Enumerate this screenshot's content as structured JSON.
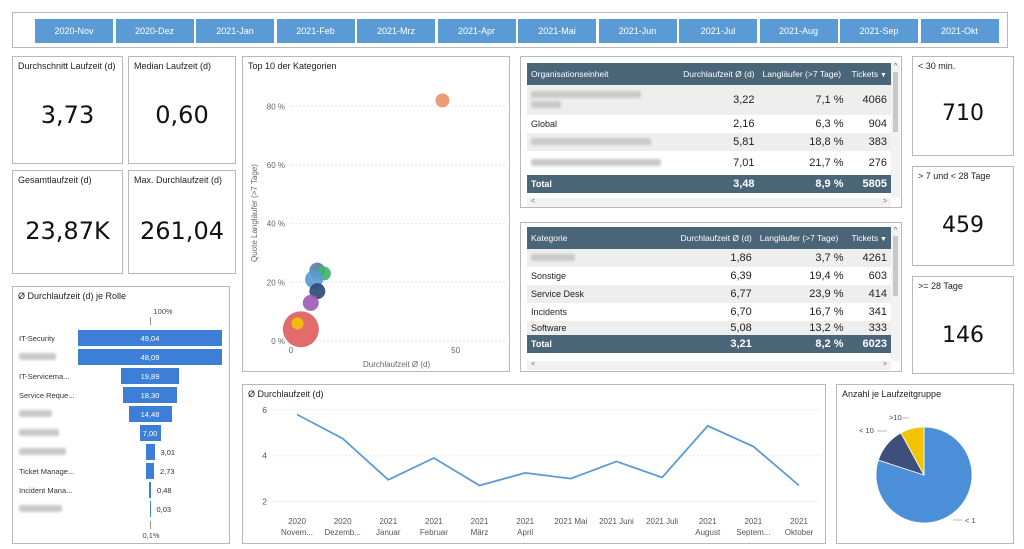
{
  "months": [
    "2020-Nov",
    "2020-Dez",
    "2021-Jan",
    "2021-Feb",
    "2021-Mrz",
    "2021-Apr",
    "2021-Mai",
    "2021-Jun",
    "2021-Jul",
    "2021-Aug",
    "2021-Sep",
    "2021-Okt"
  ],
  "kpi": {
    "avg_label": "Durchschnitt Laufzeit (d)",
    "avg_value": "3,73",
    "median_label": "Median Laufzeit (d)",
    "median_value": "0,60",
    "total_label": "Gesamtlaufzeit (d)",
    "total_value": "23,87K",
    "max_label": "Max. Durchlaufzeit (d)",
    "max_value": "261,04"
  },
  "groups": {
    "g1_label": "< 30 min.",
    "g1_value": "710",
    "g2_label": ">  7 und  < 28 Tage",
    "g2_value": "459",
    "g3_label": ">= 28 Tage",
    "g3_value": "146"
  },
  "scatter": {
    "title": "Top 10 der Kategorien",
    "ylabel": "Quote Langläufer (>7 Tage)",
    "xlabel": "Durchlaufzeit Ø (d)",
    "yticks": [
      "80 %",
      "60 %",
      "40 %",
      "20 %",
      "0 %"
    ],
    "xticks": [
      "0",
      "50"
    ]
  },
  "org_table": {
    "headers": [
      "Organisationseinheit",
      "Durchlaufzeit Ø (d)",
      "Langläufer (>7 Tage)",
      "Tickets"
    ],
    "rows": [
      {
        "name": "",
        "d": "3,22",
        "l": "7,1 %",
        "t": "4066"
      },
      {
        "name": "Global",
        "d": "2,16",
        "l": "6,3 %",
        "t": "904"
      },
      {
        "name": "",
        "d": "5,81",
        "l": "18,8 %",
        "t": "383"
      },
      {
        "name": "",
        "d": "7,01",
        "l": "21,7 %",
        "t": "276"
      }
    ],
    "total": {
      "name": "Total",
      "d": "3,48",
      "l": "8,9 %",
      "t": "5805"
    }
  },
  "cat_table": {
    "headers": [
      "Kategorie",
      "Durchlaufzeit Ø (d)",
      "Langläufer (>7 Tage)",
      "Tickets"
    ],
    "rows": [
      {
        "name": "",
        "d": "1,86",
        "l": "3,7 %",
        "t": "4261"
      },
      {
        "name": "Sonstige",
        "d": "6,39",
        "l": "19,4 %",
        "t": "603"
      },
      {
        "name": "Service Desk",
        "d": "6,77",
        "l": "23,9 %",
        "t": "414"
      },
      {
        "name": "Incidents",
        "d": "6,70",
        "l": "16,7 %",
        "t": "341"
      },
      {
        "name": "Software",
        "d": "5,08",
        "l": "13,2 %",
        "t": "333"
      }
    ],
    "total": {
      "name": "Total",
      "d": "3,21",
      "l": "8,2 %",
      "t": "6023"
    }
  },
  "funnel": {
    "title": "Ø Durchlaufzeit (d) je Rolle",
    "top_label": "100%",
    "bottom_label": "0,1%",
    "items": [
      {
        "label": "IT-Security",
        "value": "49,04"
      },
      {
        "label": "",
        "value": "48,09"
      },
      {
        "label": "IT-Servicema...",
        "value": "19,89"
      },
      {
        "label": "Service Reque...",
        "value": "18,30"
      },
      {
        "label": "",
        "value": "14,48"
      },
      {
        "label": "",
        "value": "7,00"
      },
      {
        "label": "",
        "value": "3,01"
      },
      {
        "label": "Ticket Manage...",
        "value": "2,73"
      },
      {
        "label": "Incident Mana...",
        "value": "0,48"
      },
      {
        "label": "",
        "value": "0,03"
      }
    ]
  },
  "pie": {
    "title": "Anzahl je Laufzeitgruppe",
    "lbl_gt10": ">10",
    "lbl_lt10": "< 10",
    "lbl_lt1": "< 1"
  },
  "chart_data": [
    {
      "type": "line",
      "title": "Ø Durchlaufzeit (d)",
      "x": [
        "2020 Novem...",
        "2020 Dezemb...",
        "2021 Januar",
        "2021 Februar",
        "2021 März",
        "2021 April",
        "2021 Mai",
        "2021 Juni",
        "2021 Juli",
        "2021 August",
        "2021 Septem...",
        "2021 Oktober"
      ],
      "x_top": [
        "2020",
        "2020",
        "2021",
        "2021",
        "2021",
        "2021",
        "2021 Mai",
        "2021 Juni",
        "2021 Juli",
        "2021",
        "2021",
        "2021"
      ],
      "x_bottom": [
        "Novem...",
        "Dezemb...",
        "Januar",
        "Februar",
        "März",
        "April",
        "",
        "",
        "",
        "August",
        "Septem...",
        "Oktober"
      ],
      "values": [
        5.8,
        4.75,
        2.95,
        3.9,
        2.7,
        3.25,
        3.0,
        3.75,
        3.05,
        5.3,
        4.4,
        2.7
      ],
      "yticks": [
        "6",
        "4",
        "2"
      ],
      "ylim": [
        1.5,
        6.3
      ],
      "color": "#5b9bd5"
    },
    {
      "type": "scatter",
      "title": "Top 10 der Kategorien",
      "xlabel": "Durchlaufzeit Ø (d)",
      "ylabel": "Quote Langläufer (>7 Tage)",
      "xlim": [
        0,
        65
      ],
      "ylim": [
        0,
        0.9
      ],
      "points": [
        {
          "x": 46,
          "y": 0.82,
          "size": 7,
          "color": "#e8956a"
        },
        {
          "x": 8,
          "y": 0.24,
          "size": 8,
          "color": "#5b7fa6"
        },
        {
          "x": 10,
          "y": 0.23,
          "size": 7,
          "color": "#3fb56f"
        },
        {
          "x": 7,
          "y": 0.21,
          "size": 9,
          "color": "#5b9bd5"
        },
        {
          "x": 8,
          "y": 0.17,
          "size": 8,
          "color": "#2f4a7a"
        },
        {
          "x": 6,
          "y": 0.13,
          "size": 8,
          "color": "#a05cb8"
        },
        {
          "x": 3,
          "y": 0.04,
          "size": 18,
          "color": "#e06060"
        },
        {
          "x": 2,
          "y": 0.06,
          "size": 6,
          "color": "#f2c300"
        }
      ]
    },
    {
      "type": "pie",
      "title": "Anzahl je Laufzeitgruppe",
      "slices": [
        {
          "label": "< 1",
          "value": 80,
          "color": "#4a8fd8"
        },
        {
          "label": "< 10",
          "value": 12,
          "color": "#3d4f7a"
        },
        {
          "label": ">10",
          "value": 8,
          "color": "#f2c300"
        }
      ]
    }
  ]
}
